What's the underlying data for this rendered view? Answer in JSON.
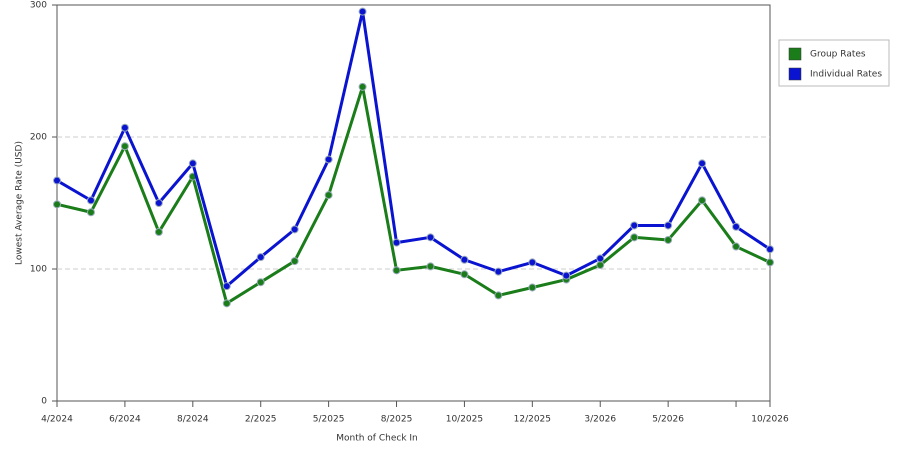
{
  "chart_data": {
    "type": "line",
    "x_label": "Month of Check In",
    "y_label": "Lowest Average Rate (USD)",
    "categories": [
      "4/2024",
      null,
      "6/2024",
      null,
      "8/2024",
      null,
      "2/2025",
      null,
      "5/2025",
      null,
      "8/2025",
      null,
      "10/2025",
      null,
      "12/2025",
      null,
      "3/2026",
      null,
      "5/2026",
      null,
      null,
      "10/2026"
    ],
    "series": [
      {
        "name": "Group Rates",
        "color": "#1a7d1a",
        "values": [
          149,
          143,
          193,
          128,
          170,
          74,
          90,
          106,
          156,
          238,
          99,
          102,
          96,
          80,
          86,
          92,
          103,
          124,
          122,
          152,
          117,
          105
        ]
      },
      {
        "name": "Individual Rates",
        "color": "#0a14d0",
        "values": [
          167,
          152,
          207,
          150,
          180,
          87,
          109,
          130,
          183,
          295,
          120,
          124,
          107,
          98,
          105,
          95,
          108,
          133,
          133,
          180,
          132,
          115
        ]
      }
    ],
    "ylim": [
      0,
      300
    ],
    "yticks": [
      0,
      100,
      200,
      300
    ],
    "grid": true,
    "legend": "right"
  }
}
